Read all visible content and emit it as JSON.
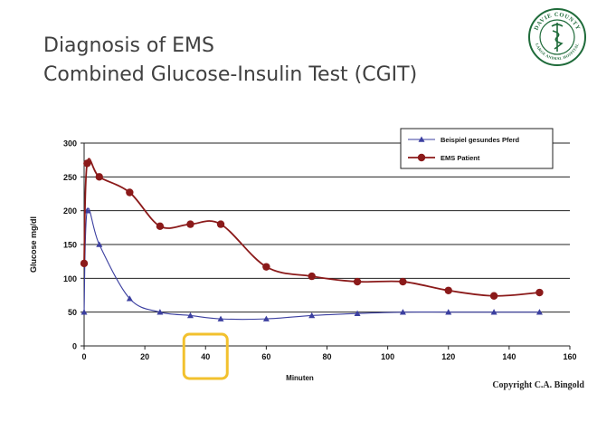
{
  "slide": {
    "title_line1": "Diagnosis of EMS",
    "title_line2": "Combined Glucose-Insulin Test (CGIT)",
    "copyright": "Copyright C.A. Bingold"
  },
  "logo": {
    "text_top": "DAVIE COUNTY",
    "text_bottom": "LARGE ANIMAL HOSPITAL",
    "color": "#1f6b3a"
  },
  "highlight": {
    "x_value": 40,
    "color": "#f2c12e"
  },
  "chart_data": {
    "type": "line",
    "xlabel": "Minuten",
    "ylabel": "Glucose mg/dl",
    "xlim": [
      0,
      160
    ],
    "ylim": [
      0,
      300
    ],
    "xticks": [
      0,
      20,
      40,
      60,
      80,
      100,
      120,
      140,
      160
    ],
    "yticks": [
      0,
      50,
      100,
      150,
      200,
      250,
      300
    ],
    "grid": true,
    "legend_position": "top-right",
    "series": [
      {
        "name": "Beispiel gesundes Pferd",
        "color": "#3b3fa0",
        "marker": "triangle",
        "x": [
          0,
          1,
          5,
          15,
          25,
          35,
          45,
          60,
          75,
          90,
          105,
          120,
          135,
          150
        ],
        "y": [
          50,
          200,
          150,
          70,
          50,
          45,
          40,
          40,
          45,
          48,
          50,
          50,
          50,
          50
        ]
      },
      {
        "name": "EMS Patient",
        "color": "#8b1a1a",
        "marker": "circle",
        "x": [
          0,
          1,
          5,
          15,
          25,
          35,
          45,
          60,
          75,
          90,
          105,
          120,
          135,
          150
        ],
        "y": [
          122,
          270,
          250,
          227,
          177,
          180,
          180,
          117,
          103,
          95,
          95,
          82,
          74,
          79
        ]
      }
    ]
  }
}
